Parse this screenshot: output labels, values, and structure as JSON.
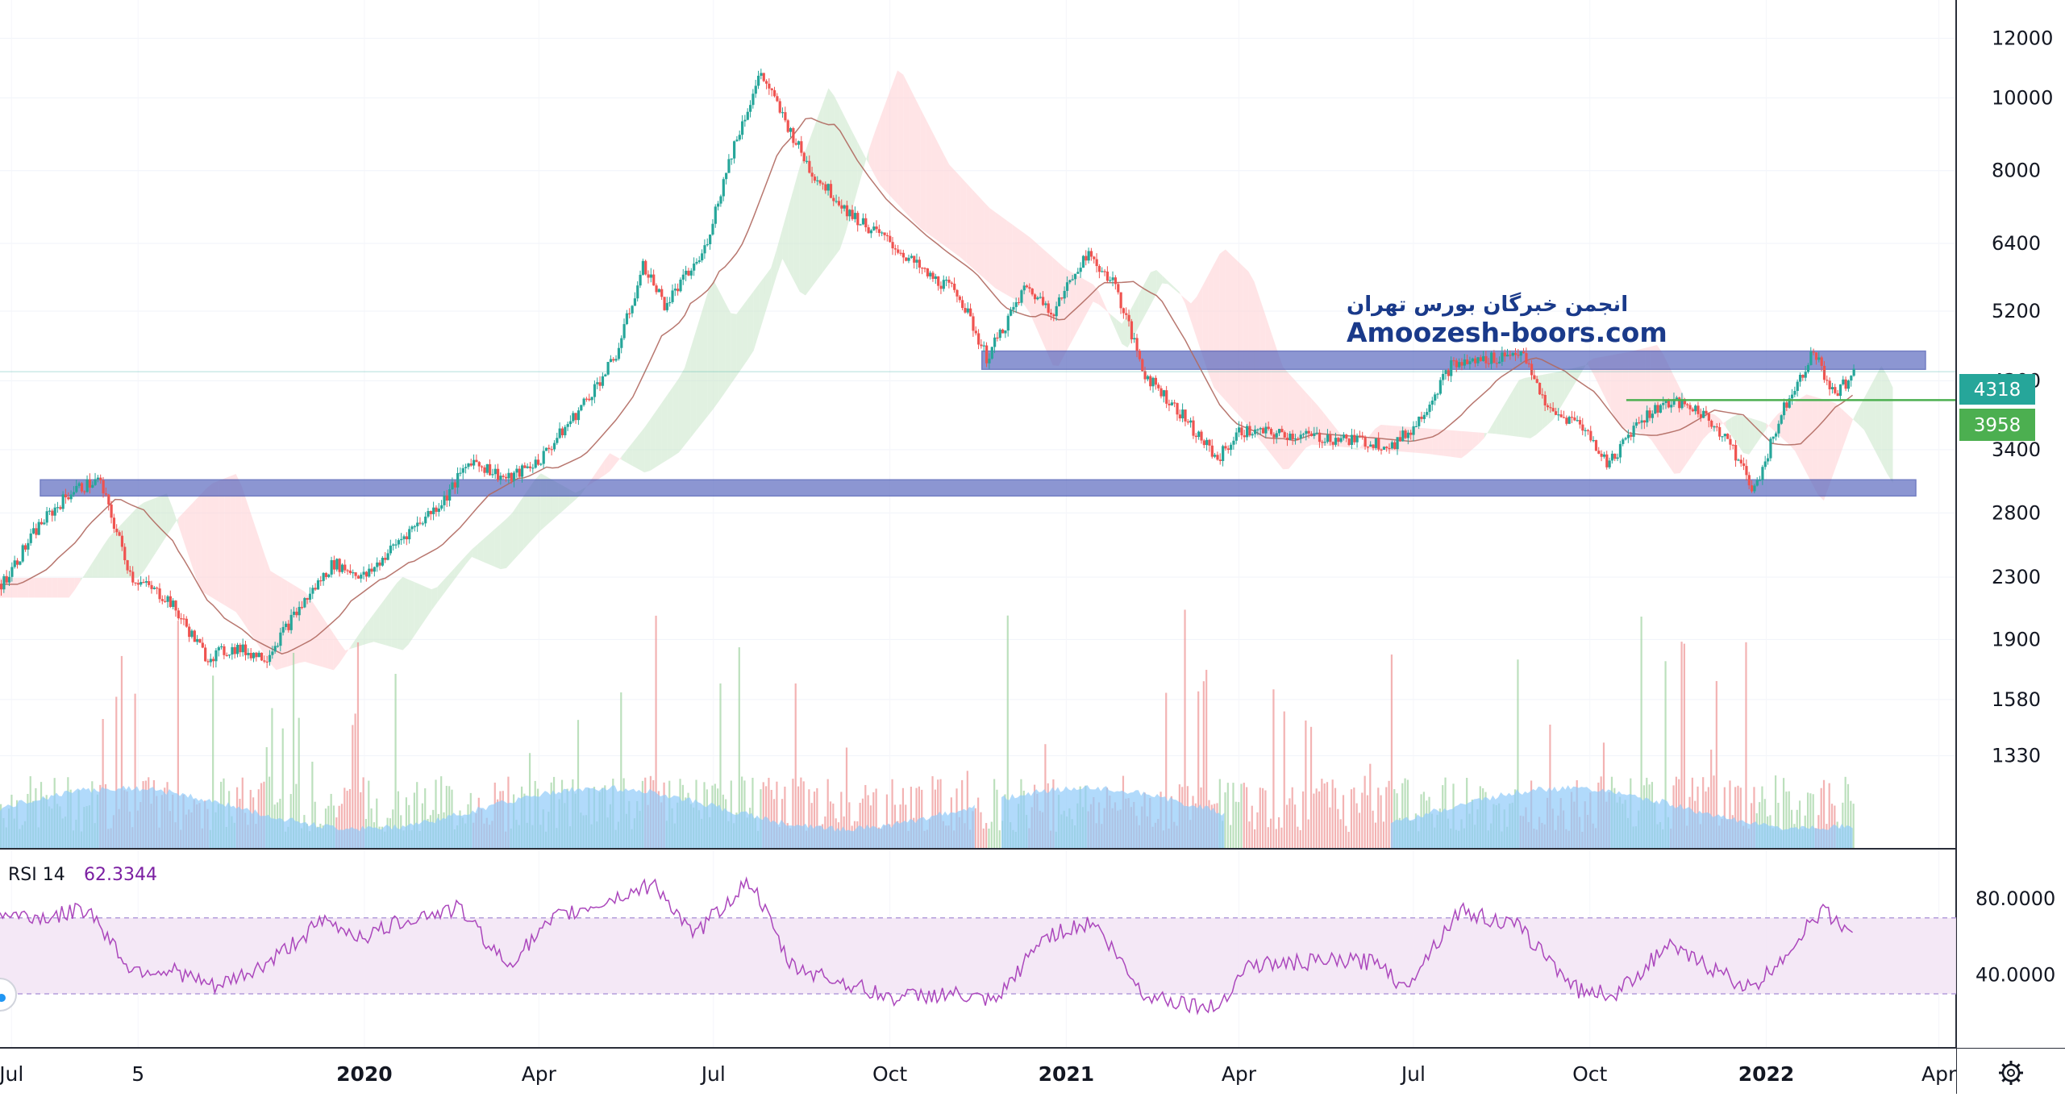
{
  "watermark": {
    "line1": "انجمن خبرگان بورس تهران",
    "line2": "Amoozesh-boors.com"
  },
  "rsi_panel": {
    "label": "RSI 14",
    "value": "62.3344",
    "level_high": 70,
    "level_low": 30,
    "ticks": [
      "80.0000",
      "40.0000"
    ]
  },
  "price_labels": {
    "last": "4318",
    "green_line": "3958"
  },
  "y_ticks": [
    "12000",
    "10000",
    "8000",
    "6400",
    "5200",
    "4200",
    "3400",
    "2800",
    "2300",
    "1900",
    "1580",
    "1330"
  ],
  "x_ticks": [
    "Jul",
    "5",
    "2020",
    "Apr",
    "Jul",
    "Oct",
    "2021",
    "Apr",
    "Jul",
    "Oct",
    "2022",
    "Apr"
  ],
  "colors": {
    "up": "#26a69a",
    "down": "#ef5350",
    "cloud_bull": "#c8e6c9",
    "cloud_bear": "#ffcdd2",
    "zone": "#5c6bc0",
    "rsi": "#ab47bc",
    "rsi_band": "#f3e5f5",
    "volume_ma": "#90caf9",
    "green_line": "#4caf50",
    "last_badge": "#26a69a"
  },
  "chart_data": {
    "type": "candlestick",
    "y_scale": "log",
    "ylim": [
      1000,
      13500
    ],
    "x_range": [
      "2019-06-25",
      "2022-04-10"
    ],
    "support_zone": [
      2950,
      3100
    ],
    "resistance_zone": [
      4350,
      4600
    ],
    "horizontal_line": 3958,
    "last_price": 4318,
    "price_path": [
      [
        "2019-06-25",
        2250
      ],
      [
        "2019-07-15",
        2700
      ],
      [
        "2019-08-01",
        3000
      ],
      [
        "2019-08-15",
        3100
      ],
      [
        "2019-09-01",
        2300
      ],
      [
        "2019-09-20",
        2150
      ],
      [
        "2019-10-10",
        1800
      ],
      [
        "2019-10-25",
        1850
      ],
      [
        "2019-11-10",
        1800
      ],
      [
        "2019-11-25",
        2050
      ],
      [
        "2019-12-15",
        2400
      ],
      [
        "2020-01-01",
        2300
      ],
      [
        "2020-01-20",
        2600
      ],
      [
        "2020-02-10",
        2900
      ],
      [
        "2020-02-25",
        3300
      ],
      [
        "2020-03-15",
        3100
      ],
      [
        "2020-04-01",
        3300
      ],
      [
        "2020-04-20",
        3800
      ],
      [
        "2020-05-10",
        4500
      ],
      [
        "2020-05-25",
        6000
      ],
      [
        "2020-06-05",
        5300
      ],
      [
        "2020-06-25",
        6200
      ],
      [
        "2020-07-10",
        8500
      ],
      [
        "2020-07-25",
        10800
      ],
      [
        "2020-08-05",
        9500
      ],
      [
        "2020-08-20",
        8000
      ],
      [
        "2020-09-10",
        7000
      ],
      [
        "2020-10-01",
        6400
      ],
      [
        "2020-10-20",
        5800
      ],
      [
        "2020-11-05",
        5500
      ],
      [
        "2020-11-20",
        4500
      ],
      [
        "2020-12-10",
        5600
      ],
      [
        "2020-12-25",
        5200
      ],
      [
        "2021-01-10",
        6200
      ],
      [
        "2021-01-25",
        5700
      ],
      [
        "2021-02-10",
        4300
      ],
      [
        "2021-03-01",
        3800
      ],
      [
        "2021-03-20",
        3300
      ],
      [
        "2021-04-01",
        3600
      ],
      [
        "2021-05-01",
        3550
      ],
      [
        "2021-06-01",
        3500
      ],
      [
        "2021-06-20",
        3450
      ],
      [
        "2021-07-01",
        3650
      ],
      [
        "2021-07-20",
        4400
      ],
      [
        "2021-08-10",
        4500
      ],
      [
        "2021-08-25",
        4600
      ],
      [
        "2021-09-10",
        3800
      ],
      [
        "2021-09-25",
        3700
      ],
      [
        "2021-10-10",
        3250
      ],
      [
        "2021-10-25",
        3700
      ],
      [
        "2021-11-10",
        3950
      ],
      [
        "2021-11-25",
        3850
      ],
      [
        "2021-12-10",
        3550
      ],
      [
        "2021-12-25",
        3000
      ],
      [
        "2022-01-10",
        3900
      ],
      [
        "2022-01-25",
        4600
      ],
      [
        "2022-02-05",
        4000
      ],
      [
        "2022-02-15",
        4318
      ]
    ],
    "rsi_path": [
      [
        "2019-06-25",
        72
      ],
      [
        "2019-07-20",
        70
      ],
      [
        "2019-08-10",
        75
      ],
      [
        "2019-09-01",
        43
      ],
      [
        "2019-09-25",
        42
      ],
      [
        "2019-10-15",
        33
      ],
      [
        "2019-11-10",
        45
      ],
      [
        "2019-12-10",
        68
      ],
      [
        "2020-01-01",
        60
      ],
      [
        "2020-01-25",
        70
      ],
      [
        "2020-02-20",
        75
      ],
      [
        "2020-03-15",
        45
      ],
      [
        "2020-04-10",
        70
      ],
      [
        "2020-05-10",
        80
      ],
      [
        "2020-06-01",
        88
      ],
      [
        "2020-06-20",
        60
      ],
      [
        "2020-07-20",
        90
      ],
      [
        "2020-08-10",
        45
      ],
      [
        "2020-09-10",
        35
      ],
      [
        "2020-10-01",
        28
      ],
      [
        "2020-11-01",
        30
      ],
      [
        "2020-11-25",
        25
      ],
      [
        "2020-12-20",
        60
      ],
      [
        "2021-01-15",
        68
      ],
      [
        "2021-02-10",
        30
      ],
      [
        "2021-03-20",
        22
      ],
      [
        "2021-04-05",
        45
      ],
      [
        "2021-05-15",
        47
      ],
      [
        "2021-06-15",
        47
      ],
      [
        "2021-06-25",
        32
      ],
      [
        "2021-07-25",
        74
      ],
      [
        "2021-08-25",
        65
      ],
      [
        "2021-09-25",
        32
      ],
      [
        "2021-10-15",
        30
      ],
      [
        "2021-11-10",
        55
      ],
      [
        "2021-12-01",
        45
      ],
      [
        "2021-12-25",
        32
      ],
      [
        "2022-01-10",
        50
      ],
      [
        "2022-01-30",
        74
      ],
      [
        "2022-02-15",
        62.3344
      ]
    ]
  }
}
